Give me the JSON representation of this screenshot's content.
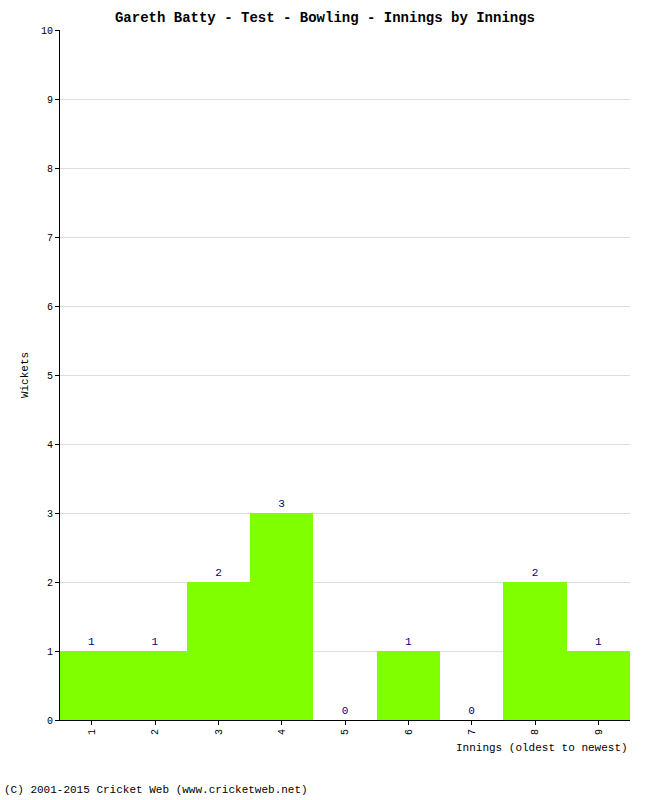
{
  "chart_data": {
    "type": "bar",
    "title": "Gareth Batty - Test - Bowling - Innings by Innings",
    "x_label": "Innings (oldest to newest)",
    "y_label": "Wickets",
    "categories": [
      "1",
      "2",
      "3",
      "4",
      "5",
      "6",
      "7",
      "8",
      "9"
    ],
    "values": [
      1,
      1,
      2,
      3,
      0,
      1,
      0,
      2,
      1
    ],
    "color": "#7fff00",
    "ylim": [
      0,
      10
    ],
    "yticks": [
      0,
      1,
      2,
      3,
      4,
      5,
      6,
      7,
      8,
      9,
      10
    ],
    "grid": true,
    "data_labels": true,
    "annotations": [
      "(C) 2001-2015 Cricket Web (www.cricketweb.net)"
    ]
  }
}
